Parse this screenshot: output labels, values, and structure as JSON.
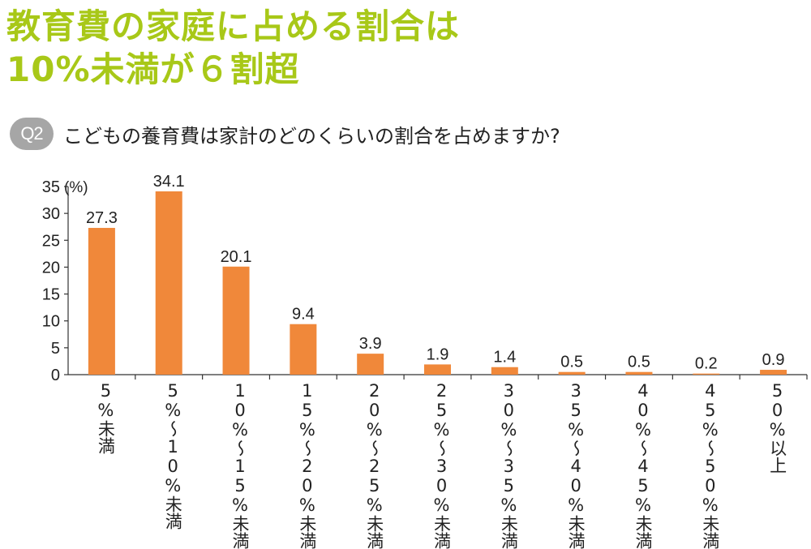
{
  "headline": {
    "line1": "教育費の家庭に占める割合は",
    "line2": "10%未満が６割超"
  },
  "question": {
    "badge": "Q2",
    "text": "こどもの養育費は家計のどのくらいの割合を占めますか?"
  },
  "colors": {
    "headline": "#a8c818",
    "bar": "#f0883a",
    "badge": "#a6a6a6"
  },
  "chart_data": {
    "type": "bar",
    "ylabel": "(%)",
    "ylim": [
      0,
      35
    ],
    "yticks": [
      0,
      5,
      10,
      15,
      20,
      25,
      30,
      35
    ],
    "grid": false,
    "categories": [
      "5%未満",
      "5%～10%未満",
      "10%～15%未満",
      "15%～20%未満",
      "20%～25%未満",
      "25%～30%未満",
      "30%～35%未満",
      "35%～40%未満",
      "40%～45%未満",
      "45%～50%未満",
      "50%以上"
    ],
    "values": [
      27.3,
      34.1,
      20.1,
      9.4,
      3.9,
      1.9,
      1.4,
      0.5,
      0.5,
      0.2,
      0.9
    ],
    "data_labels": [
      "27.3",
      "34.1",
      "20.1",
      "9.4",
      "3.9",
      "1.9",
      "1.4",
      "0.5",
      "0.5",
      "0.2",
      "0.9"
    ]
  }
}
